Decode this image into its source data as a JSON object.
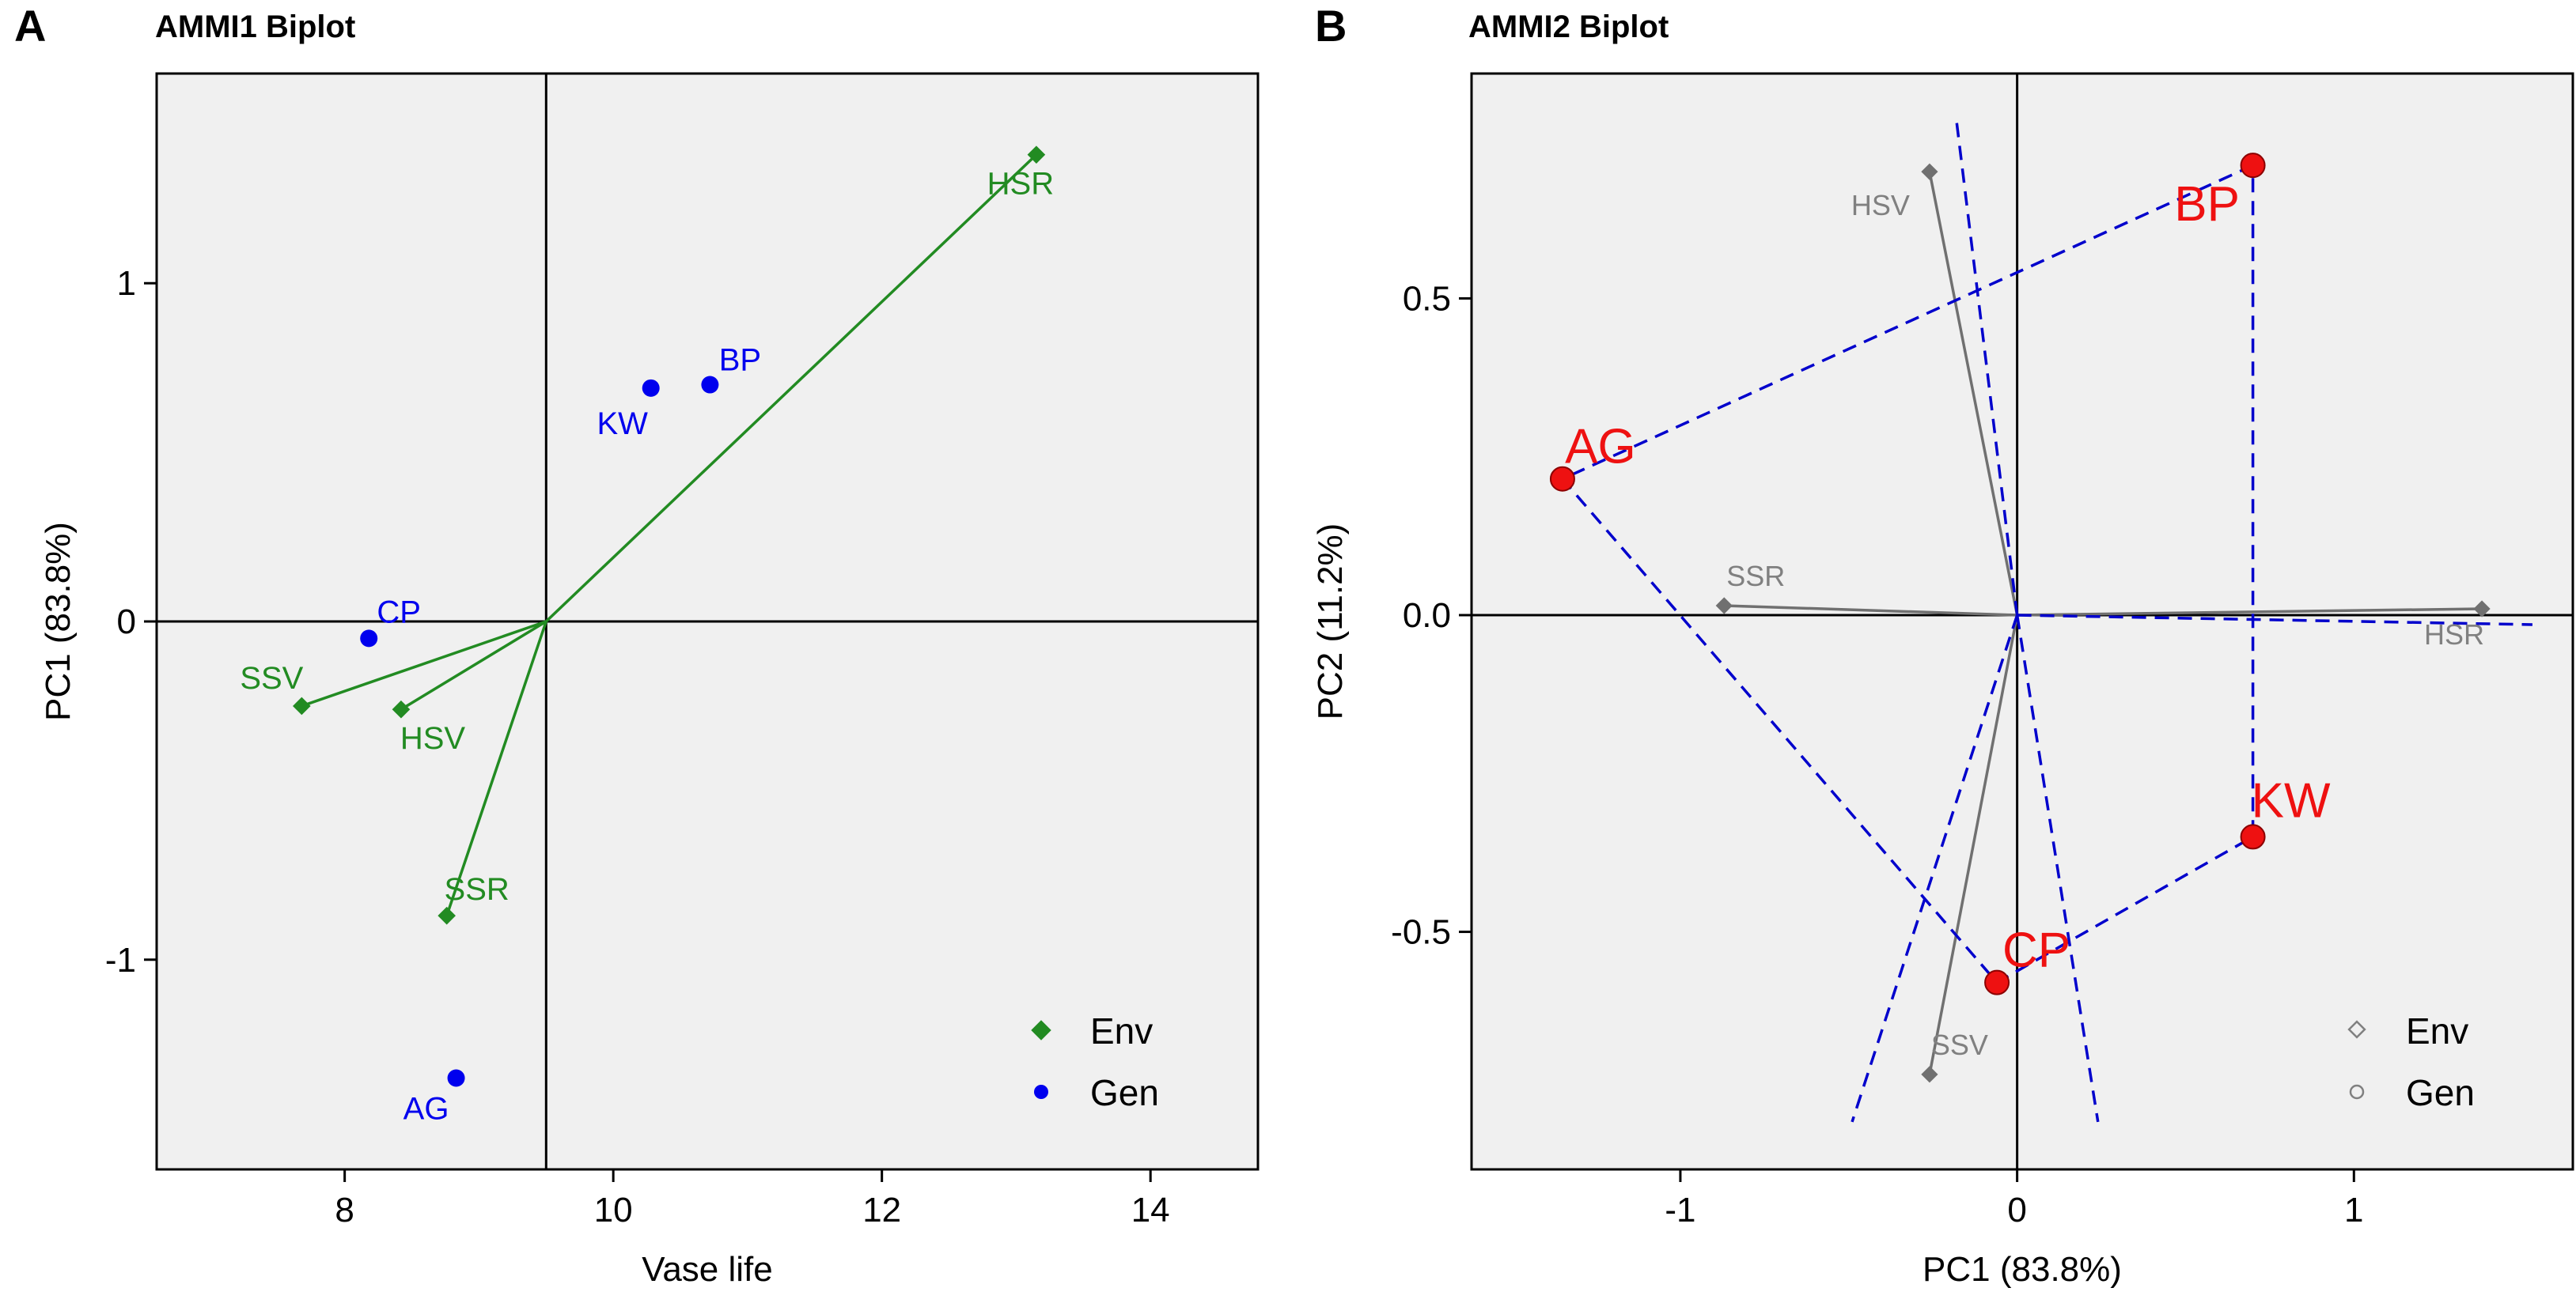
{
  "chart_data": [
    {
      "panel_label": "A",
      "type": "scatter",
      "title": "AMMI1 Biplot",
      "xlabel": "Vase life",
      "ylabel": "PC1 (83.8%)",
      "xlim": [
        6.6,
        14.8
      ],
      "ylim": [
        -1.62,
        1.62
      ],
      "xticks": [
        8,
        10,
        12,
        14
      ],
      "xtick_labels": [
        "8",
        "10",
        "12",
        "14"
      ],
      "yticks": [
        -1,
        0,
        1
      ],
      "ytick_labels": [
        "-1",
        "0",
        "1"
      ],
      "grid": false,
      "reference_lines": {
        "x": 9.5,
        "y": 0
      },
      "legend": {
        "position": "bottom-right",
        "entries": [
          {
            "label": "Env",
            "marker": "diamond",
            "color": "#228B22"
          },
          {
            "label": "Gen",
            "marker": "circle",
            "color": "#0000EE"
          }
        ]
      },
      "series": [
        {
          "name": "Env",
          "marker": "diamond",
          "color": "#228B22",
          "vectors_from": [
            9.5,
            0
          ],
          "points": [
            {
              "label": "HSR",
              "x": 13.15,
              "y": 1.38
            },
            {
              "label": "SSV",
              "x": 7.68,
              "y": -0.25
            },
            {
              "label": "HSV",
              "x": 8.42,
              "y": -0.26
            },
            {
              "label": "SSR",
              "x": 8.76,
              "y": -0.87
            }
          ]
        },
        {
          "name": "Gen",
          "marker": "circle",
          "color": "#0000EE",
          "points": [
            {
              "label": "BP",
              "x": 10.72,
              "y": 0.7
            },
            {
              "label": "KW",
              "x": 10.28,
              "y": 0.69
            },
            {
              "label": "CP",
              "x": 8.18,
              "y": -0.05
            },
            {
              "label": "AG",
              "x": 8.83,
              "y": -1.35
            }
          ]
        }
      ]
    },
    {
      "panel_label": "B",
      "type": "scatter",
      "title": "AMMI2 Biplot",
      "xlabel": "PC1 (83.8%)",
      "ylabel": "PC2 (11.2%)",
      "xlim": [
        -1.62,
        1.65
      ],
      "ylim": [
        -0.875,
        0.855
      ],
      "xticks": [
        -1,
        0,
        1
      ],
      "xtick_labels": [
        "-1",
        "0",
        "1"
      ],
      "yticks": [
        -0.5,
        0,
        0.5
      ],
      "ytick_labels": [
        "-0.5",
        "0.0",
        "0.5"
      ],
      "grid": false,
      "reference_lines": {
        "x": 0,
        "y": 0
      },
      "legend": {
        "position": "bottom-right",
        "entries": [
          {
            "label": "Env",
            "marker": "diamond-open",
            "color": "#808080"
          },
          {
            "label": "Gen",
            "marker": "circle-open",
            "color": "#808080"
          }
        ]
      },
      "series": [
        {
          "name": "Env",
          "marker": "diamond",
          "color": "#707070",
          "vectors_from": [
            0,
            0
          ],
          "points": [
            {
              "label": "HSV",
              "x": -0.26,
              "y": 0.7
            },
            {
              "label": "SSR",
              "x": -0.87,
              "y": 0.015
            },
            {
              "label": "HSR",
              "x": 1.38,
              "y": 0.01
            },
            {
              "label": "SSV",
              "x": -0.26,
              "y": -0.725
            }
          ]
        },
        {
          "name": "Gen",
          "marker": "circle",
          "color": "#EE1111",
          "points": [
            {
              "label": "BP",
              "x": 0.7,
              "y": 0.71
            },
            {
              "label": "AG",
              "x": -1.35,
              "y": 0.215
            },
            {
              "label": "KW",
              "x": 0.7,
              "y": -0.35
            },
            {
              "label": "CP",
              "x": -0.06,
              "y": -0.58
            }
          ]
        }
      ],
      "polygon": {
        "color": "#0000CC",
        "style": "dashed",
        "vertex_order": [
          "BP",
          "AG",
          "CP",
          "KW"
        ]
      },
      "sector_rays": [
        {
          "x": -0.18,
          "y": 0.78
        },
        {
          "x": -0.49,
          "y": -0.8
        },
        {
          "x": 0.24,
          "y": -0.8
        },
        {
          "x": 1.53,
          "y": -0.015
        }
      ]
    }
  ]
}
